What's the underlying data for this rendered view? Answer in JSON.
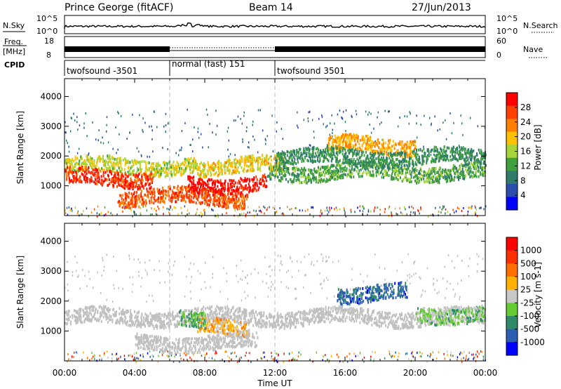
{
  "header": {
    "station": "Prince George (fitACF)",
    "beam": "Beam 14",
    "date": "27/Jun/2013"
  },
  "noise_panel": {
    "left_label": "N.Sky",
    "right_label": "N.Search",
    "left_ticks": [
      "10^5",
      "10^0"
    ],
    "right_ticks": [
      "10^5",
      "10^0"
    ]
  },
  "freq_panel": {
    "left_label_line1": "Freq.",
    "left_label_line2": "[MHz]",
    "right_label": "Nave",
    "left_ticks": [
      "18",
      "8"
    ],
    "right_ticks": [
      "60",
      "0"
    ]
  },
  "cpid_panel": {
    "label": "CPID",
    "segments": [
      {
        "start": "00:00",
        "end": "06:00",
        "text": "twofsound -3501"
      },
      {
        "start": "06:00",
        "end": "12:00",
        "text": "normal (fast) 151"
      },
      {
        "start": "12:00",
        "end": "24:00",
        "text": "twofsound 3501"
      }
    ]
  },
  "colors": {
    "power_scale": [
      "#0000ff",
      "#2b4faa",
      "#2f7a6a",
      "#3fa040",
      "#a6d43a",
      "#ffc000",
      "#ff8000",
      "#ff4000",
      "#ff0000"
    ],
    "velocity_scale": [
      "#0000ff",
      "#2c5fb3",
      "#2f8a6a",
      "#66cc33",
      "#c8c8c8",
      "#ffb000",
      "#ff7000",
      "#ff3000",
      "#ff0000"
    ],
    "scatter_gray": "#c0c0c0"
  },
  "chart_data": [
    {
      "type": "heatmap",
      "name": "power",
      "xlabel": "",
      "ylabel": "Slant Range [km]",
      "xlim": [
        "00:00",
        "24:00"
      ],
      "ylim": [
        0,
        4600
      ],
      "x_ticks": [
        "00:00",
        "04:00",
        "08:00",
        "12:00",
        "16:00",
        "20:00",
        "00:00"
      ],
      "y_ticks": [
        1000,
        2000,
        3000,
        4000
      ],
      "colorbar": {
        "label": "Power [dB]",
        "ticks": [
          "28",
          "24",
          "20",
          "16",
          "12",
          "8",
          "4"
        ],
        "range": [
          0,
          30
        ]
      },
      "features": [
        {
          "t_start": 0.0,
          "t_end": 7.5,
          "range_km": 1700,
          "value_db": 16
        },
        {
          "t_start": 0.0,
          "t_end": 5.0,
          "range_km": 1300,
          "value_db": 26
        },
        {
          "t_start": 3.0,
          "t_end": 10.5,
          "range_km": 650,
          "value_db": 24
        },
        {
          "t_start": 7.0,
          "t_end": 11.5,
          "range_km": 1100,
          "value_db": 28
        },
        {
          "t_start": 7.5,
          "t_end": 12.5,
          "range_km": 1700,
          "value_db": 18
        },
        {
          "t_start": 11.5,
          "t_end": 24.0,
          "range_km": 1500,
          "value_db": 12
        },
        {
          "t_start": 15.0,
          "t_end": 20.0,
          "range_km": 2400,
          "value_db": 20
        },
        {
          "t_start": 12.0,
          "t_end": 24.0,
          "range_km": 2000,
          "value_db": 10
        }
      ]
    },
    {
      "type": "heatmap",
      "name": "velocity",
      "xlabel": "Time UT",
      "ylabel": "Slant Range [km]",
      "xlim": [
        "00:00",
        "24:00"
      ],
      "ylim": [
        0,
        4600
      ],
      "x_ticks": [
        "00:00",
        "04:00",
        "08:00",
        "12:00",
        "16:00",
        "20:00",
        "00:00"
      ],
      "y_ticks": [
        1000,
        2000,
        3000,
        4000
      ],
      "colorbar": {
        "label": "Velocity [m s-1]",
        "ticks": [
          "1000",
          "500",
          "100",
          "25",
          "-25",
          "-100",
          "-500",
          "-1000"
        ],
        "range": [
          -1000,
          1000
        ]
      },
      "features": [
        {
          "t_start": 0.0,
          "t_end": 24.0,
          "range_km": 1500,
          "value_ms": 0
        },
        {
          "t_start": 7.5,
          "t_end": 10.5,
          "range_km": 1150,
          "value_ms": 200
        },
        {
          "t_start": 6.5,
          "t_end": 8.0,
          "range_km": 1350,
          "value_ms": -300
        },
        {
          "t_start": 15.5,
          "t_end": 19.5,
          "range_km": 2300,
          "value_ms": -600
        },
        {
          "t_start": 20.0,
          "t_end": 24.0,
          "range_km": 1600,
          "value_ms": -200
        },
        {
          "t_start": 4.0,
          "t_end": 11.0,
          "range_km": 650,
          "value_ms": 0
        }
      ]
    }
  ]
}
